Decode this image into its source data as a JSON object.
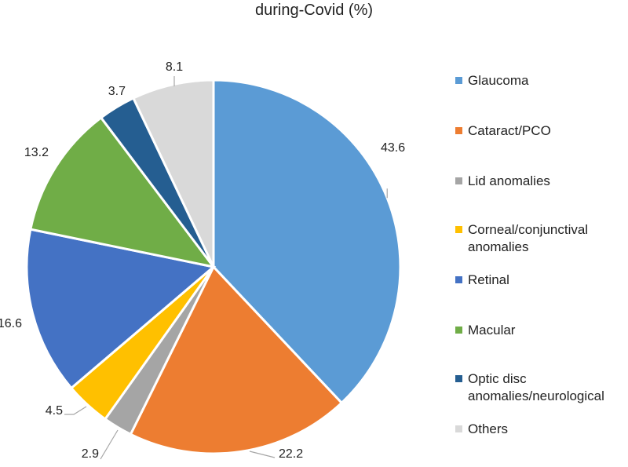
{
  "chart_data": {
    "type": "pie",
    "title": "during-Covid (%)",
    "categories": [
      "Glaucoma",
      "Cataract/PCO",
      "Lid anomalies",
      "Corneal/conjunctival anomalies",
      "Retinal",
      "Macular",
      "Optic disc anomalies/neurological",
      "Others"
    ],
    "values": [
      43.6,
      22.2,
      2.9,
      4.5,
      16.6,
      13.2,
      3.7,
      8.1
    ],
    "value_labels": [
      "43.6",
      "22.2",
      "2.9",
      "4.5",
      "16.6",
      "13.2",
      "3.7",
      "8.1"
    ],
    "colors": [
      "#5B9BD5",
      "#ED7D31",
      "#A5A5A5",
      "#FFC000",
      "#4472C4",
      "#70AD47",
      "#255E91",
      "#D9D9D9"
    ],
    "legend_position": "right",
    "start_angle": "12 o'clock, clockwise"
  }
}
